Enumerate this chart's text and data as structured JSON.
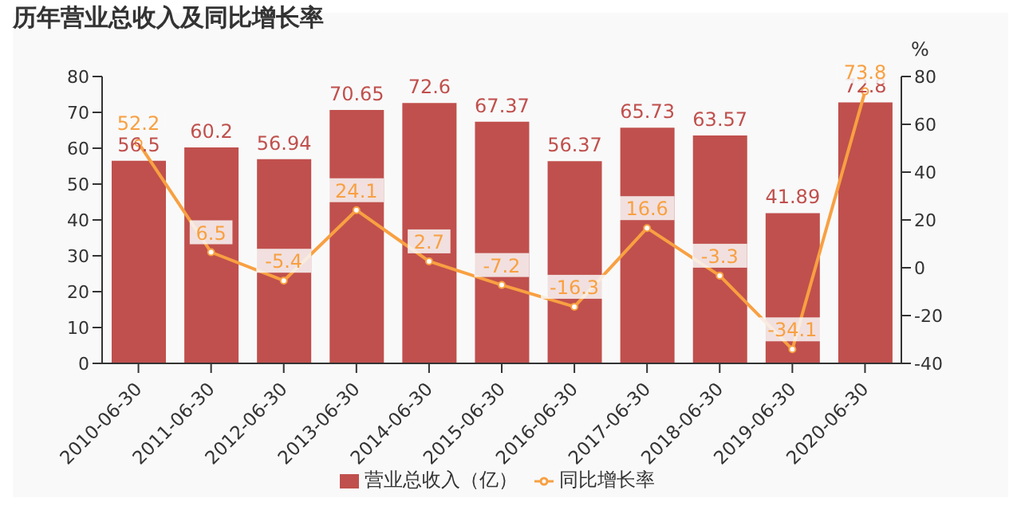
{
  "chart_data": {
    "type": "bar",
    "title": "历年营业总收入及同比增长率",
    "y2label": "%",
    "categories": [
      "2010-06-30",
      "2011-06-30",
      "2012-06-30",
      "2013-06-30",
      "2014-06-30",
      "2015-06-30",
      "2016-06-30",
      "2017-06-30",
      "2018-06-30",
      "2019-06-30",
      "2020-06-30"
    ],
    "series": [
      {
        "name": "营业总收入（亿）",
        "color": "#c0504d",
        "values": [
          56.5,
          60.2,
          56.94,
          70.65,
          72.6,
          67.37,
          56.37,
          65.73,
          63.57,
          41.89,
          72.8
        ]
      },
      {
        "name": "同比增长率",
        "type": "line",
        "axis": "y2",
        "color": "#f8a042",
        "values": [
          52.2,
          6.5,
          -5.4,
          24.1,
          2.7,
          -7.2,
          -16.3,
          16.6,
          -3.3,
          -34.1,
          73.8
        ]
      }
    ],
    "ylim": [
      0,
      80
    ],
    "yticks": [
      0,
      10,
      20,
      30,
      40,
      50,
      60,
      70,
      80
    ],
    "y2lim": [
      -40,
      80
    ],
    "y2ticks": [
      -40,
      -20,
      0,
      20,
      40,
      60,
      80
    ],
    "data_labels": true,
    "legend": "bottom",
    "marker": "circle",
    "grid": false
  }
}
